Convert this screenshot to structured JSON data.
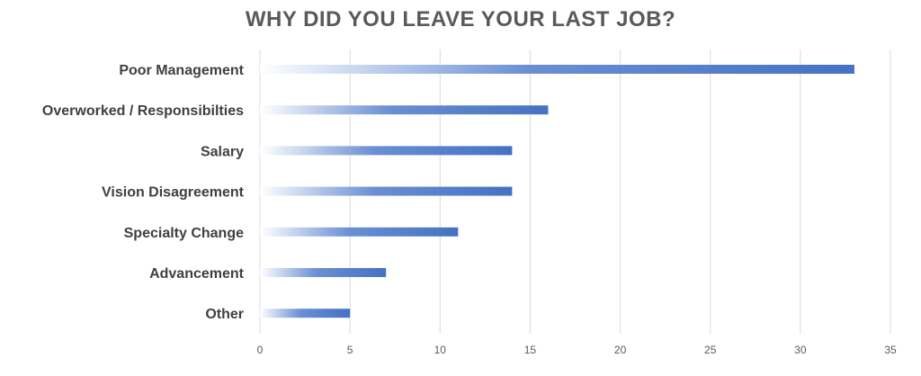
{
  "chart_data": {
    "type": "bar",
    "orientation": "horizontal",
    "title": "WHY DID YOU LEAVE YOUR LAST JOB?",
    "categories": [
      "Poor Management",
      "Overworked / Responsibilties",
      "Salary",
      "Vision Disagreement",
      "Specialty Change",
      "Advancement",
      "Other"
    ],
    "values": [
      33,
      16,
      14,
      14,
      11,
      7,
      5
    ],
    "xlim": [
      0,
      35
    ],
    "xticks": [
      0,
      5,
      10,
      15,
      20,
      25,
      30,
      35
    ],
    "grid": true,
    "legend": "none",
    "bar_color": "#4472c4",
    "bar_style": "gradient fading to white at the left end"
  }
}
